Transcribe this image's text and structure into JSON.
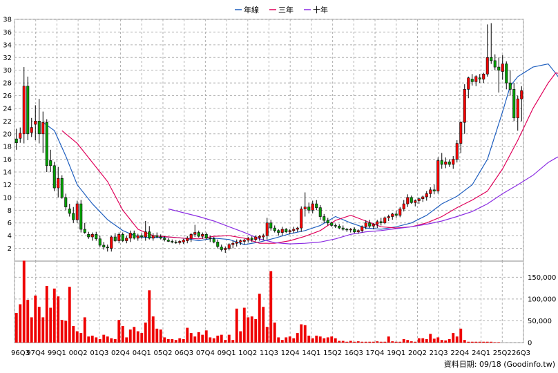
{
  "chart_data": [
    {
      "type": "candlestick",
      "panel": "price",
      "ylim": [
        0,
        38
      ],
      "yticks": [
        2,
        4,
        6,
        8,
        10,
        12,
        14,
        16,
        18,
        20,
        22,
        24,
        26,
        28,
        30,
        32,
        34,
        36,
        38
      ],
      "grid": true,
      "legend_position": "top-center",
      "legend": [
        {
          "name": "年線",
          "color": "#1f5fbf"
        },
        {
          "name": "三年",
          "color": "#e0005a"
        },
        {
          "name": "十年",
          "color": "#8a2be2"
        }
      ],
      "x_labels": [
        "96Q3",
        "97Q4",
        "99Q1",
        "00Q2",
        "01Q3",
        "02Q4",
        "04Q1",
        "05Q2",
        "06Q3",
        "07Q4",
        "09Q1",
        "10Q2",
        "11Q3",
        "12Q4",
        "14Q1",
        "15Q2",
        "16Q3",
        "17Q4",
        "19Q1",
        "20Q2",
        "21Q3",
        "22Q4",
        "24Q1",
        "25Q2",
        "26Q3"
      ],
      "candles": [
        [
          19.2,
          17.5,
          20.8,
          18.6
        ],
        [
          19.3,
          18.6,
          21.0,
          20.1
        ],
        [
          20.0,
          18.5,
          30.5,
          27.5
        ],
        [
          27.5,
          19.0,
          29.0,
          20.0
        ],
        [
          20.2,
          19.5,
          22.5,
          21.0
        ],
        [
          21.5,
          19.0,
          24.5,
          22.0
        ],
        [
          22.0,
          18.5,
          25.5,
          20.0
        ],
        [
          20.0,
          17.0,
          23.5,
          21.8
        ],
        [
          21.8,
          14.0,
          22.3,
          15.0
        ],
        [
          15.8,
          14.0,
          17.5,
          15.0
        ],
        [
          15.0,
          11.0,
          15.6,
          11.5
        ],
        [
          11.5,
          10.0,
          14.8,
          13.0
        ],
        [
          13.0,
          9.8,
          13.5,
          10.0
        ],
        [
          10.0,
          8.0,
          10.6,
          8.5
        ],
        [
          8.2,
          7.0,
          9.0,
          7.5
        ],
        [
          7.5,
          6.0,
          8.5,
          6.5
        ],
        [
          6.5,
          6.0,
          9.5,
          9.0
        ],
        [
          9.0,
          4.5,
          9.6,
          5.0
        ],
        [
          5.0,
          4.3,
          6.0,
          4.5
        ],
        [
          4.2,
          3.5,
          4.6,
          3.8
        ],
        [
          3.8,
          3.2,
          4.5,
          4.2
        ],
        [
          4.2,
          3.2,
          4.6,
          3.5
        ],
        [
          3.5,
          2.2,
          4.0,
          2.5
        ],
        [
          2.5,
          1.8,
          3.0,
          2.2
        ],
        [
          2.2,
          1.5,
          2.6,
          2.1
        ],
        [
          2.0,
          1.5,
          4.0,
          3.8
        ],
        [
          3.8,
          3.0,
          4.4,
          3.2
        ],
        [
          3.2,
          2.8,
          4.5,
          4.2
        ],
        [
          4.2,
          3.0,
          4.5,
          3.2
        ],
        [
          3.2,
          2.8,
          4.0,
          3.6
        ],
        [
          3.6,
          3.0,
          4.8,
          4.4
        ],
        [
          4.4,
          3.4,
          4.8,
          3.6
        ],
        [
          3.6,
          3.2,
          4.3,
          4.0
        ],
        [
          4.0,
          3.5,
          4.4,
          3.8
        ],
        [
          3.8,
          3.2,
          6.3,
          4.6
        ],
        [
          4.6,
          3.4,
          5.5,
          3.6
        ],
        [
          3.6,
          3.2,
          4.4,
          4.0
        ],
        [
          4.0,
          3.6,
          4.5,
          3.8
        ],
        [
          3.8,
          3.4,
          4.2,
          3.6
        ],
        [
          3.6,
          3.1,
          3.9,
          3.4
        ],
        [
          3.3,
          3.0,
          3.6,
          3.1
        ],
        [
          3.1,
          2.8,
          3.4,
          3.0
        ],
        [
          3.0,
          2.7,
          3.3,
          2.9
        ],
        [
          2.9,
          2.6,
          3.3,
          3.1
        ],
        [
          3.0,
          2.7,
          3.5,
          3.3
        ],
        [
          3.2,
          2.8,
          3.9,
          3.6
        ],
        [
          3.6,
          3.0,
          4.4,
          4.2
        ],
        [
          4.2,
          3.8,
          5.7,
          4.5
        ],
        [
          4.5,
          3.7,
          4.8,
          3.9
        ],
        [
          3.9,
          3.5,
          4.5,
          4.2
        ],
        [
          4.2,
          3.4,
          4.5,
          3.6
        ],
        [
          3.6,
          3.0,
          4.0,
          3.5
        ],
        [
          3.5,
          2.8,
          3.8,
          3.0
        ],
        [
          3.0,
          2.0,
          3.4,
          2.3
        ],
        [
          2.2,
          1.5,
          2.6,
          1.8
        ],
        [
          1.8,
          1.3,
          2.3,
          2.0
        ],
        [
          2.0,
          1.7,
          2.8,
          2.6
        ],
        [
          2.6,
          2.0,
          3.2,
          2.8
        ],
        [
          2.8,
          2.3,
          3.4,
          3.0
        ],
        [
          3.0,
          2.5,
          3.4,
          3.2
        ],
        [
          3.1,
          2.6,
          3.5,
          3.3
        ],
        [
          3.3,
          2.9,
          3.8,
          3.6
        ],
        [
          3.6,
          3.0,
          3.9,
          3.4
        ],
        [
          3.4,
          3.1,
          4.0,
          3.8
        ],
        [
          3.7,
          3.2,
          4.1,
          3.9
        ],
        [
          3.8,
          3.3,
          4.3,
          4.0
        ],
        [
          4.0,
          3.4,
          6.8,
          6.0
        ],
        [
          6.0,
          4.8,
          6.5,
          5.2
        ],
        [
          5.2,
          4.5,
          5.6,
          4.8
        ],
        [
          4.8,
          4.0,
          5.0,
          4.5
        ],
        [
          4.5,
          4.0,
          5.4,
          5.0
        ],
        [
          5.0,
          4.4,
          5.2,
          4.6
        ],
        [
          4.6,
          4.2,
          5.0,
          4.8
        ],
        [
          4.8,
          4.4,
          5.4,
          5.0
        ],
        [
          5.0,
          4.6,
          5.4,
          5.2
        ],
        [
          5.2,
          4.6,
          8.6,
          8.2
        ],
        [
          8.2,
          7.0,
          10.8,
          8.5
        ],
        [
          8.5,
          7.5,
          9.2,
          8.0
        ],
        [
          8.0,
          7.5,
          9.5,
          9.0
        ],
        [
          9.0,
          8.0,
          9.6,
          8.4
        ],
        [
          8.4,
          6.5,
          8.8,
          7.0
        ],
        [
          7.0,
          6.0,
          7.4,
          6.4
        ],
        [
          6.4,
          5.6,
          6.8,
          6.0
        ],
        [
          6.0,
          5.4,
          6.2,
          5.6
        ],
        [
          5.6,
          5.2,
          5.9,
          5.5
        ],
        [
          5.5,
          5.0,
          5.8,
          5.2
        ],
        [
          5.2,
          4.8,
          5.6,
          5.0
        ],
        [
          5.0,
          4.6,
          5.2,
          4.9
        ],
        [
          4.9,
          4.5,
          5.2,
          5.0
        ],
        [
          5.0,
          4.4,
          5.3,
          4.6
        ],
        [
          4.6,
          4.3,
          5.0,
          4.8
        ],
        [
          4.8,
          4.5,
          5.6,
          5.4
        ],
        [
          5.4,
          5.0,
          6.4,
          6.0
        ],
        [
          6.0,
          5.2,
          6.5,
          5.5
        ],
        [
          5.5,
          5.0,
          6.0,
          5.8
        ],
        [
          5.8,
          5.2,
          6.5,
          6.2
        ],
        [
          6.2,
          5.6,
          6.8,
          6.0
        ],
        [
          6.0,
          5.8,
          7.0,
          6.8
        ],
        [
          6.8,
          6.3,
          7.3,
          7.0
        ],
        [
          7.0,
          6.5,
          7.6,
          7.4
        ],
        [
          7.4,
          6.8,
          7.9,
          7.2
        ],
        [
          7.2,
          6.9,
          8.5,
          8.2
        ],
        [
          8.2,
          7.8,
          9.6,
          9.0
        ],
        [
          9.0,
          8.5,
          10.5,
          10.0
        ],
        [
          10.0,
          9.0,
          10.3,
          9.2
        ],
        [
          9.2,
          8.6,
          9.7,
          9.5
        ],
        [
          9.5,
          9.0,
          10.0,
          9.8
        ],
        [
          9.8,
          9.3,
          10.3,
          10.1
        ],
        [
          10.1,
          9.5,
          11.0,
          10.6
        ],
        [
          10.6,
          10.0,
          11.6,
          11.2
        ],
        [
          11.2,
          10.5,
          12.0,
          11.0
        ],
        [
          11.0,
          10.6,
          16.3,
          15.8
        ],
        [
          15.8,
          14.5,
          17.0,
          15.2
        ],
        [
          15.2,
          14.6,
          16.3,
          15.6
        ],
        [
          15.6,
          14.8,
          16.0,
          15.2
        ],
        [
          15.2,
          14.5,
          16.5,
          16.0
        ],
        [
          16.0,
          15.5,
          19.0,
          18.5
        ],
        [
          18.5,
          17.0,
          22.0,
          21.8
        ],
        [
          21.8,
          20.0,
          27.8,
          27.0
        ],
        [
          27.0,
          25.6,
          29.0,
          28.8
        ],
        [
          28.6,
          27.6,
          29.4,
          28.2
        ],
        [
          28.2,
          27.5,
          29.2,
          29.0
        ],
        [
          28.8,
          28.0,
          29.4,
          28.6
        ],
        [
          28.6,
          28.0,
          29.6,
          29.4
        ],
        [
          29.4,
          29.0,
          37.2,
          32.0
        ],
        [
          32.0,
          31.0,
          37.4,
          31.5
        ],
        [
          31.5,
          30.0,
          32.5,
          30.5
        ],
        [
          30.5,
          26.5,
          32.0,
          30.0
        ],
        [
          29.8,
          28.5,
          32.4,
          31.0
        ],
        [
          31.0,
          27.0,
          31.4,
          28.0
        ],
        [
          28.0,
          26.0,
          30.0,
          27.0
        ],
        [
          27.0,
          22.0,
          28.0,
          22.5
        ],
        [
          22.5,
          20.5,
          26.0,
          25.5
        ],
        [
          25.5,
          22.0,
          27.5,
          26.8
        ]
      ],
      "series": [
        {
          "name": "年線",
          "x": [
            7,
            10,
            13,
            16,
            20,
            24,
            28,
            32,
            36,
            40,
            44,
            48,
            52,
            56,
            60,
            64,
            68,
            72,
            76,
            80,
            84,
            88,
            92,
            96,
            100,
            104,
            108,
            112,
            116,
            120,
            124,
            128,
            130,
            132,
            136,
            140,
            142,
            145
          ],
          "values": [
            21.8,
            20.5,
            16.5,
            12.0,
            9.0,
            6.5,
            4.8,
            3.8,
            3.7,
            3.8,
            3.6,
            3.2,
            3.6,
            3.4,
            2.6,
            3.0,
            3.6,
            4.3,
            4.8,
            5.6,
            7.0,
            6.0,
            5.2,
            5.0,
            5.4,
            6.0,
            7.2,
            9.0,
            10.2,
            12.0,
            16.0,
            23.5,
            27.5,
            29.0,
            30.5,
            31.0,
            29.5,
            27.0
          ]
        },
        {
          "name": "三年",
          "x": [
            12,
            16,
            20,
            24,
            28,
            32,
            36,
            40,
            44,
            48,
            52,
            56,
            60,
            64,
            68,
            72,
            76,
            80,
            84,
            88,
            92,
            96,
            100,
            104,
            108,
            112,
            116,
            120,
            124,
            128,
            132,
            136,
            140,
            142,
            144,
            145
          ],
          "values": [
            20.5,
            18.5,
            15.5,
            12.5,
            8.0,
            5.0,
            4.0,
            3.8,
            3.6,
            3.5,
            3.9,
            4.0,
            3.6,
            2.8,
            2.8,
            3.2,
            3.9,
            4.8,
            6.4,
            7.2,
            6.3,
            5.4,
            5.2,
            5.4,
            6.0,
            7.0,
            8.4,
            9.6,
            11.0,
            14.5,
            19.0,
            24.0,
            28.0,
            29.6,
            29.3,
            28.8
          ]
        },
        {
          "name": "十年",
          "x": [
            40,
            44,
            48,
            52,
            56,
            60,
            64,
            68,
            72,
            76,
            80,
            84,
            88,
            92,
            96,
            100,
            104,
            108,
            112,
            116,
            120,
            124,
            128,
            132,
            136,
            140,
            142,
            145
          ],
          "values": [
            8.2,
            7.6,
            7.0,
            6.3,
            5.4,
            4.5,
            3.5,
            2.9,
            2.7,
            2.8,
            3.0,
            3.5,
            4.2,
            4.6,
            4.8,
            5.1,
            5.4,
            5.8,
            6.3,
            7.0,
            7.8,
            9.0,
            10.6,
            12.0,
            13.5,
            15.5,
            16.2,
            17.1
          ]
        }
      ]
    },
    {
      "type": "bar",
      "panel": "volume",
      "ylim": [
        0,
        187000
      ],
      "y_tick_labels": [
        "0",
        "50,000",
        "100,000",
        "150,000"
      ],
      "y_tick_values": [
        0,
        50000,
        100000,
        150000
      ],
      "color": "#ee0000",
      "values": [
        68000,
        88000,
        188000,
        98000,
        58000,
        108000,
        82000,
        58000,
        130000,
        80000,
        124000,
        106000,
        52000,
        50000,
        128000,
        38000,
        26000,
        22000,
        58000,
        14000,
        16000,
        12000,
        8000,
        18000,
        14000,
        10000,
        8000,
        52000,
        38000,
        12000,
        30000,
        36000,
        26000,
        22000,
        46000,
        120000,
        60000,
        32000,
        30000,
        12000,
        8000,
        8000,
        6000,
        10000,
        8000,
        34000,
        22000,
        14000,
        24000,
        18000,
        28000,
        12000,
        10000,
        16000,
        18000,
        6000,
        18000,
        6000,
        78000,
        26000,
        80000,
        58000,
        60000,
        54000,
        112000,
        82000,
        36000,
        164000,
        46000,
        12000,
        6000,
        12000,
        14000,
        10000,
        22000,
        42000,
        40000,
        16000,
        10000,
        16000,
        14000,
        10000,
        12000,
        14000,
        10000,
        4000,
        4000,
        2000,
        4000,
        2000,
        3000,
        2000,
        2000,
        2000,
        2000,
        3000,
        2000,
        2000,
        14000,
        3000,
        2000,
        2000,
        8000,
        6000,
        3000,
        2000,
        10000,
        10000,
        8000,
        20000,
        9000,
        12000,
        6000,
        5000,
        8000,
        22000,
        14000,
        32000,
        6000,
        2000,
        2000,
        2000,
        2000,
        2000,
        2000,
        2000,
        1000,
        1000
      ]
    }
  ],
  "source_note": "資料日期: 09/18 (Goodinfo.tw)"
}
